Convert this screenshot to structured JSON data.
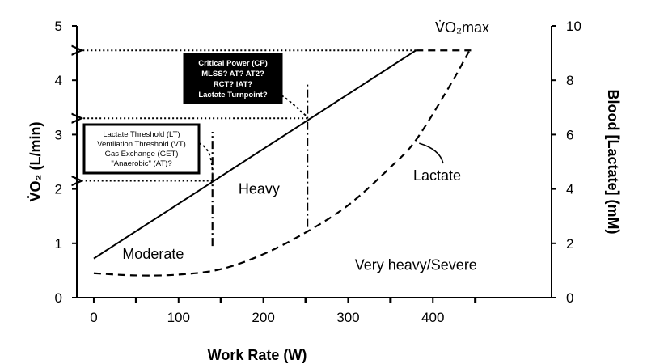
{
  "chart_data": {
    "type": "line",
    "xlabel": "Work Rate (W)",
    "ylabel_left": "V̇O₂ (L/min)",
    "ylabel_right": "Blood [Lactate] (mM)",
    "xlim": [
      -20,
      540
    ],
    "ylim_left": [
      0,
      5
    ],
    "ylim_right": [
      0,
      10
    ],
    "xticks": [
      0,
      100,
      200,
      300,
      400
    ],
    "yticks_left": [
      0,
      1,
      2,
      3,
      4,
      5
    ],
    "yticks_right": [
      0,
      2,
      4,
      6,
      8,
      10
    ],
    "minor_xticks": [
      50,
      150,
      250,
      350,
      450
    ],
    "vo2max_label": "V̇O₂max",
    "series": [
      {
        "name": "V̇O₂",
        "axis": "left",
        "style": "solid",
        "x": [
          0,
          380
        ],
        "y": [
          0.72,
          4.55
        ]
      },
      {
        "name": "V̇O₂max plateau",
        "axis": "left",
        "style": "dashed",
        "x": [
          380,
          445
        ],
        "y": [
          4.55,
          4.55
        ]
      },
      {
        "name": "Lactate",
        "axis": "right",
        "style": "dashed",
        "x": [
          0,
          50,
          100,
          150,
          200,
          250,
          300,
          350,
          380,
          420,
          445
        ],
        "y": [
          0.9,
          0.82,
          0.85,
          1.05,
          1.6,
          2.4,
          3.4,
          4.8,
          5.8,
          7.8,
          9.2
        ]
      }
    ],
    "thresholds": [
      {
        "x": 140,
        "y_bottom": 0.95,
        "y_top": 3.05,
        "label": "LT"
      },
      {
        "x": 252,
        "y_bottom": 1.3,
        "y_top": 3.95,
        "label": "CP"
      }
    ],
    "zones": [
      {
        "label": "Moderate",
        "x": 70,
        "y": 0.8
      },
      {
        "label": "Heavy",
        "x": 195,
        "y": 2.0
      },
      {
        "label": "Very heavy/Severe",
        "x": 380,
        "y": 0.6
      },
      {
        "label": "Lactate",
        "x": 405,
        "y": 2.25
      }
    ],
    "annotations": {
      "lt_box": [
        "Lactate Threshold (LT)",
        "Ventilation Threshold (VT)",
        "Gas Exchange (GET)",
        "\"Anaerobic\" (AT)?"
      ],
      "cp_box": [
        "Critical Power (CP)",
        "MLSS? AT? AT2?",
        "RCT? IAT?",
        "Lactate Turnpoint?"
      ]
    },
    "reference_arrows": [
      {
        "to_y": 4.55,
        "from_x": 380
      },
      {
        "to_y": 3.3,
        "from_x": 252
      },
      {
        "to_y": 2.15,
        "from_x": 140
      }
    ],
    "grid": false
  }
}
